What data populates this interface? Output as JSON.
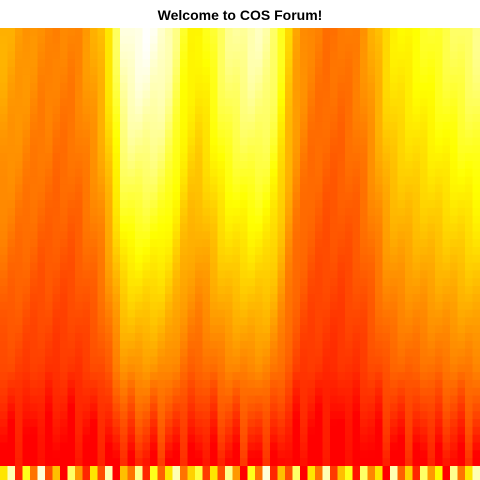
{
  "chart_data": {
    "type": "heatmap",
    "title": "Welcome to COS Forum!",
    "xlabel": "",
    "ylabel": "",
    "columns": 64,
    "color_scale": [
      "#ff0000",
      "#ff4000",
      "#ff8000",
      "#ffbf00",
      "#ffff00",
      "#ffff80",
      "#ffffff"
    ],
    "column_profiles": [
      0.46,
      0.44,
      0.42,
      0.4,
      0.38,
      0.36,
      0.36,
      0.34,
      0.34,
      0.34,
      0.36,
      0.4,
      0.44,
      0.5,
      0.62,
      0.78,
      0.94,
      0.97,
      0.98,
      0.98,
      0.97,
      0.95,
      0.9,
      0.82,
      0.72,
      0.66,
      0.64,
      0.68,
      0.74,
      0.8,
      0.84,
      0.86,
      0.88,
      0.9,
      0.9,
      0.88,
      0.82,
      0.7,
      0.55,
      0.44,
      0.38,
      0.34,
      0.32,
      0.3,
      0.3,
      0.3,
      0.32,
      0.34,
      0.38,
      0.44,
      0.5,
      0.58,
      0.62,
      0.64,
      0.66,
      0.68,
      0.7,
      0.72,
      0.74,
      0.76,
      0.78,
      0.8,
      0.82,
      0.84
    ],
    "bottom_row_levels": [
      0.6,
      0.9,
      0.1,
      0.7,
      0.3,
      0.95,
      0.2,
      0.5,
      0.0,
      0.8,
      0.4,
      0.1,
      0.6,
      0.2,
      0.9,
      0.0,
      0.5,
      0.3,
      0.85,
      0.1,
      0.7,
      0.25,
      0.6,
      0.9,
      0.3,
      0.55,
      0.75,
      0.15,
      0.6,
      0.2,
      0.85,
      0.4,
      0.0,
      0.7,
      0.3,
      0.95,
      0.1,
      0.5,
      0.2,
      0.8,
      0.0,
      0.6,
      0.3,
      0.9,
      0.15,
      0.5,
      0.7,
      0.05,
      0.8,
      0.35,
      0.6,
      0.0,
      0.9,
      0.25,
      0.55,
      0.1,
      0.8,
      0.4,
      0.65,
      0.0,
      0.85,
      0.3,
      0.6,
      0.9
    ]
  }
}
